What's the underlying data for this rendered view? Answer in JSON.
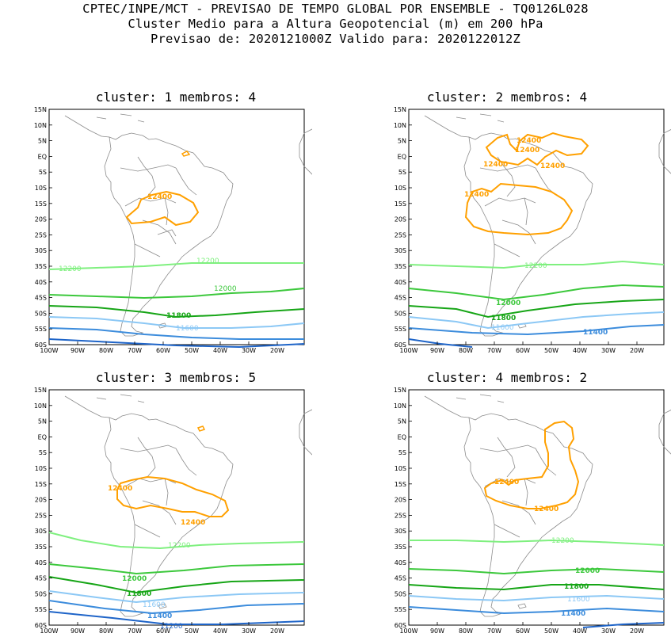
{
  "header": {
    "line1": "CPTEC/INPE/MCT - PREVISAO DE TEMPO GLOBAL POR ENSEMBLE - TQ0126L028",
    "line2": "Cluster Medio para a Altura Geopotencial (m) em 200 hPa",
    "line3": "Previsao de: 2020121000Z    Valido para: 2020122012Z"
  },
  "axes": {
    "lat_labels": [
      "15N",
      "10N",
      "5N",
      "EQ",
      "5S",
      "10S",
      "15S",
      "20S",
      "25S",
      "30S",
      "35S",
      "40S",
      "45S",
      "50S",
      "55S",
      "60S"
    ],
    "lon_labels": [
      "100W",
      "90W",
      "80W",
      "70W",
      "60W",
      "50W",
      "40W",
      "30W",
      "20W"
    ]
  },
  "colors": {
    "c12400": "#ffa000",
    "c12200": "#7ff07f",
    "c12000": "#3cc83c",
    "c11800": "#16a516",
    "c11600": "#8cc8f5",
    "c11400": "#3c8cdc",
    "c11200": "#1e64c8",
    "coast": "#8c8c8c"
  },
  "panels": [
    {
      "title": "cluster: 1   membros: 4",
      "labels": {
        "l12400": "12400",
        "l12200a": "12200",
        "l12200b": "12200",
        "l12000": "12000",
        "l11800": "11800",
        "l11600": "11600"
      }
    },
    {
      "title": "cluster: 2   membros: 4",
      "labels": {
        "l12400a": "12400",
        "l12400b": "12400",
        "l12400c": "12400",
        "l12400d": "12400",
        "l12400e": "12400",
        "l12200": "12200",
        "l12000": "12000",
        "l11800": "11800",
        "l11600": "11600",
        "l11400": "11400"
      }
    },
    {
      "title": "cluster: 3   membros: 5",
      "labels": {
        "l12400a": "12400",
        "l12400b": "12400",
        "l12200": "12200",
        "l12000": "12000",
        "l11800": "11800",
        "l11600": "11600",
        "l11400": "11400",
        "l11200": "11200"
      }
    },
    {
      "title": "cluster: 4   membros: 2",
      "labels": {
        "l12400a": "12400",
        "l12400b": "12400",
        "l12200": "12200",
        "l12000": "12000",
        "l11800": "11800",
        "l11600": "11600",
        "l11400": "11400"
      }
    }
  ]
}
